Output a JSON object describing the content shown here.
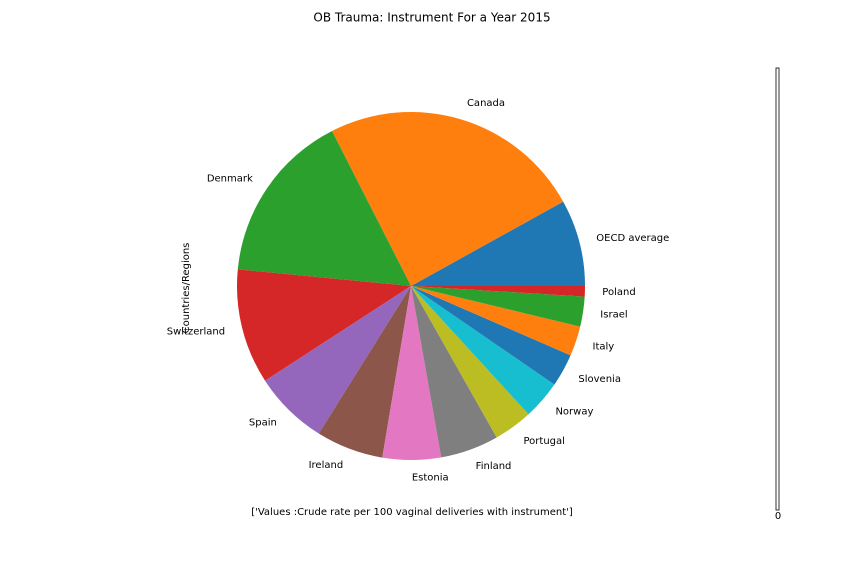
{
  "chart_data": {
    "type": "pie",
    "title": "OB Trauma: Instrument For a Year 2015",
    "y_label": "Countries/Regions",
    "note": "['Values :Crude rate per 100 vaginal deliveries with instrument']",
    "colorbar_tick": "0",
    "categories": [
      "OECD average",
      "Canada",
      "Denmark",
      "Switzerland",
      "Spain",
      "Ireland",
      "Estonia",
      "Finland",
      "Portugal",
      "Norway",
      "Slovenia",
      "Italy",
      "Israel",
      "Poland"
    ],
    "values": [
      5.8,
      17.6,
      11.5,
      7.7,
      5.0,
      4.5,
      3.9,
      3.9,
      2.6,
      2.6,
      2.2,
      2.0,
      2.0,
      0.7
    ],
    "colors": [
      "#1f77b4",
      "#ff7f0e",
      "#2ca02c",
      "#d62728",
      "#9467bd",
      "#8c564b",
      "#e377c2",
      "#7f7f7f",
      "#bcbd22",
      "#17becf",
      "#1f77b4",
      "#ff7f0e",
      "#2ca02c",
      "#d62728"
    ]
  }
}
